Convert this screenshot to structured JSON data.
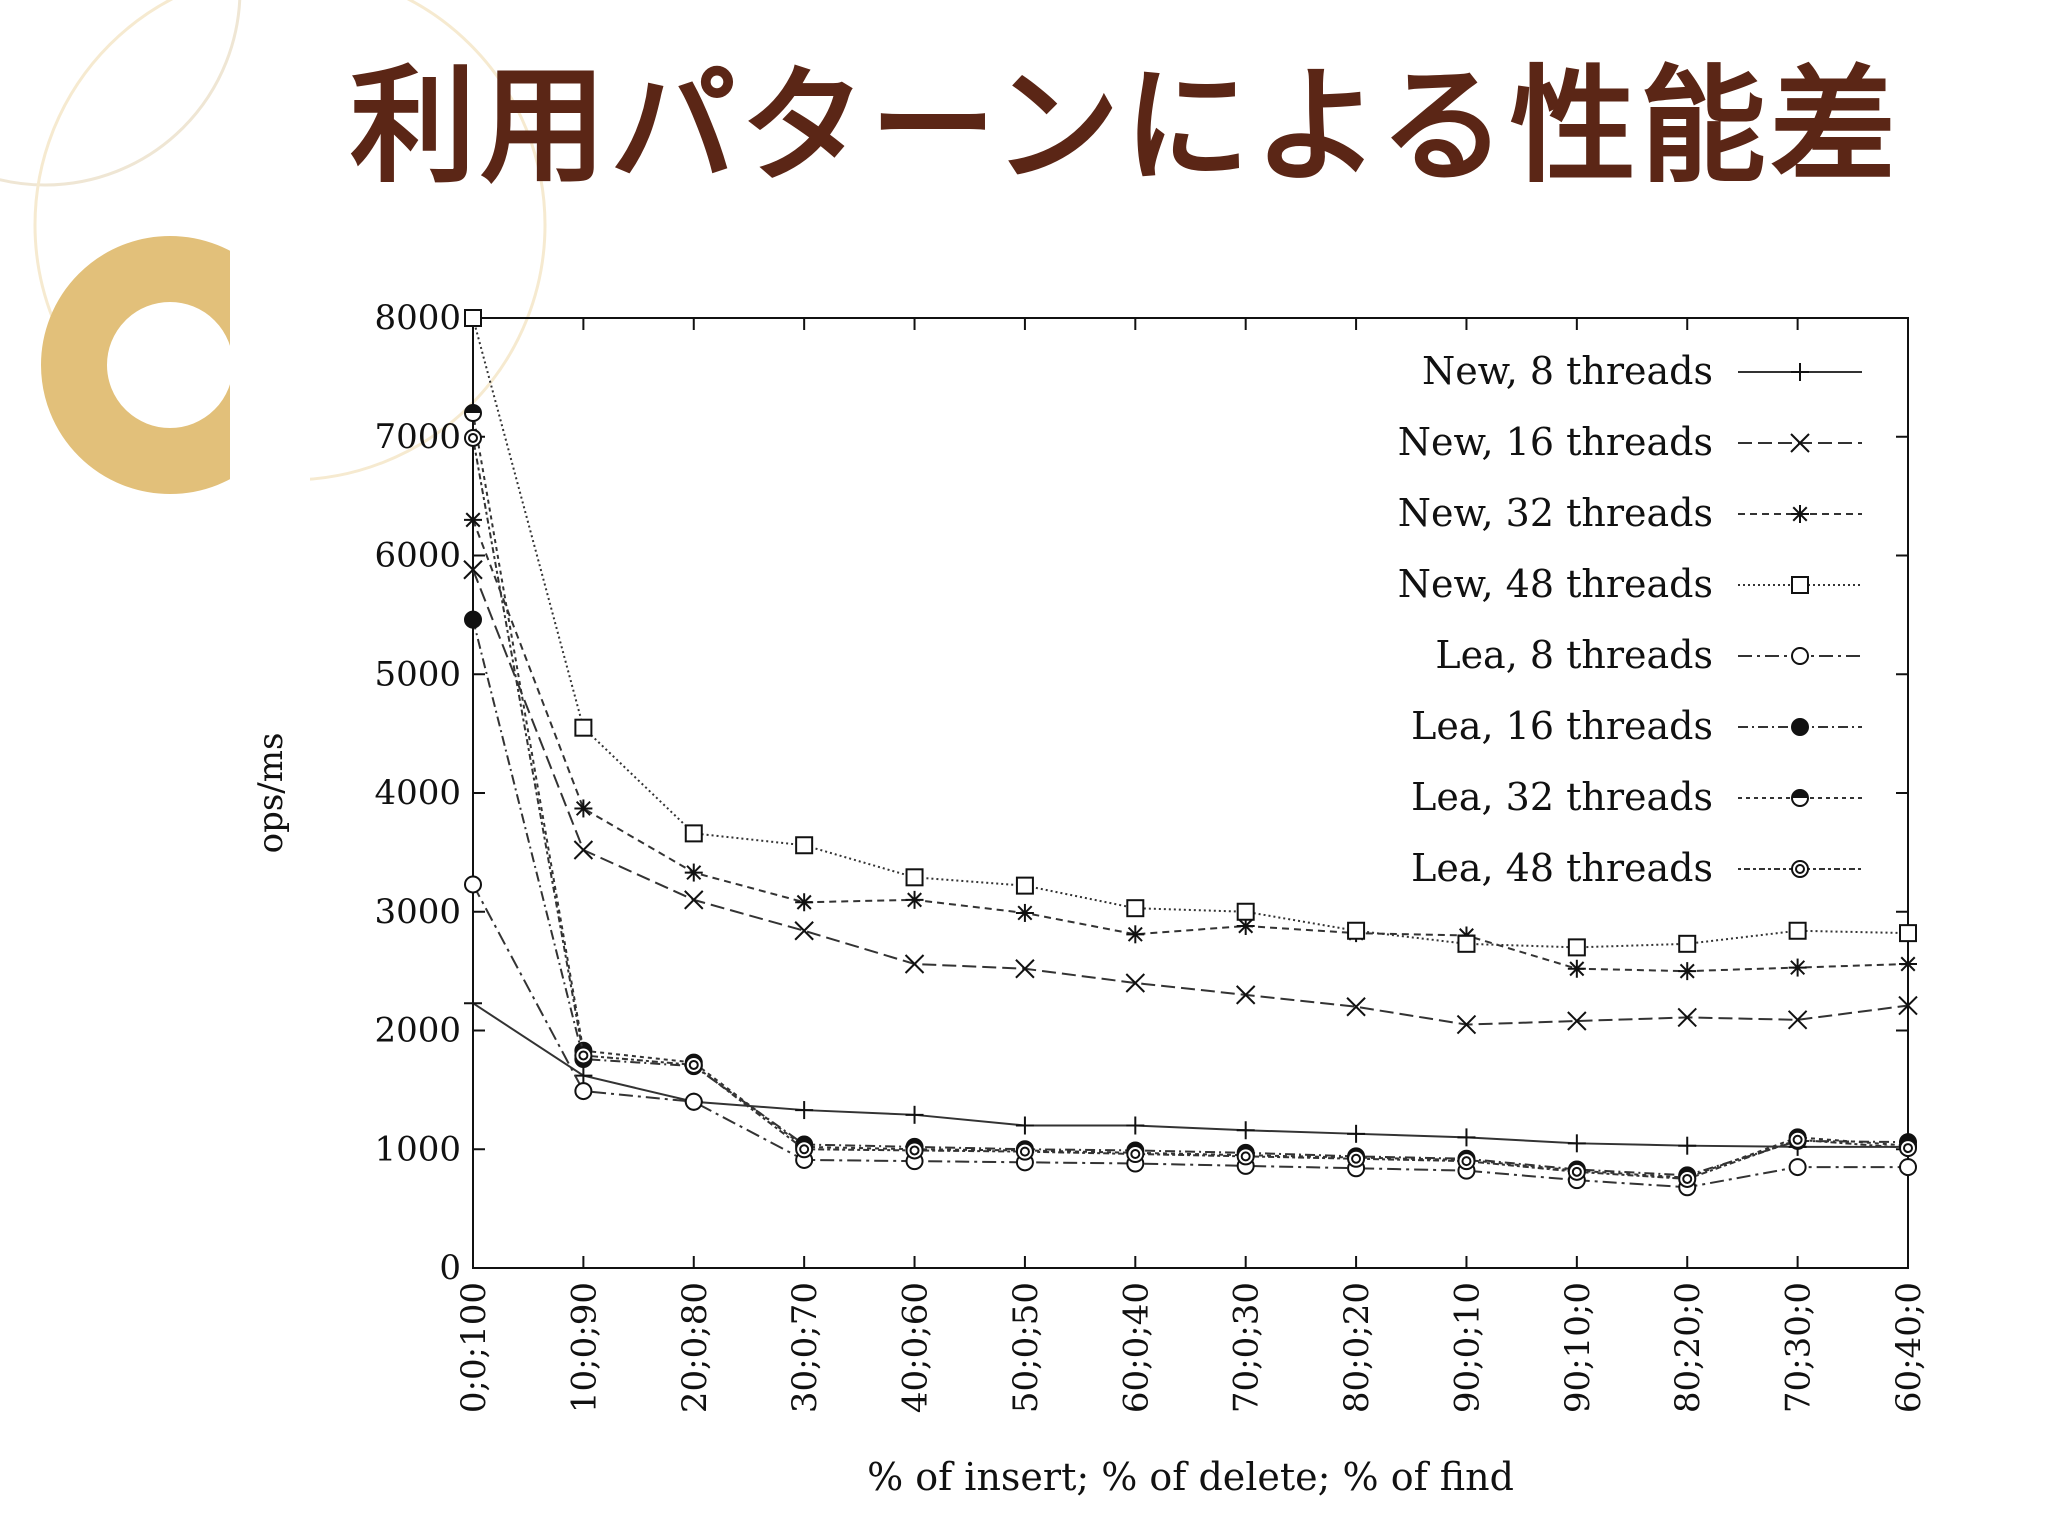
{
  "slide": {
    "title": "利用パターンによる性能差",
    "title_color": "#5b2616",
    "accent_color": "#e2c07a"
  },
  "chart_data": {
    "type": "line",
    "xlabel": "% of insert; % of delete; % of find",
    "ylabel": "ops/ms",
    "ylim": [
      0,
      8000
    ],
    "yticks": [
      0,
      1000,
      2000,
      3000,
      4000,
      5000,
      6000,
      7000,
      8000
    ],
    "categories": [
      "0;0;100",
      "10;0;90",
      "20;0;80",
      "30;0;70",
      "40;0;60",
      "50;0;50",
      "60;0;40",
      "70;0;30",
      "80;0;20",
      "90;0;10",
      "90;10;0",
      "80;20;0",
      "70;30;0",
      "60;40;0"
    ],
    "grid": false,
    "legend": "top-right",
    "series": [
      {
        "name": "New, 8 threads",
        "marker": "plus",
        "dash": "",
        "values": [
          2230,
          1620,
          1400,
          1330,
          1290,
          1200,
          1200,
          1160,
          1130,
          1100,
          1050,
          1030,
          1020,
          1020
        ]
      },
      {
        "name": "New, 16 threads",
        "marker": "x",
        "dash": "14 6",
        "values": [
          5880,
          3520,
          3100,
          2840,
          2560,
          2520,
          2400,
          2300,
          2200,
          2050,
          2080,
          2110,
          2090,
          2210
        ]
      },
      {
        "name": "New, 32 threads",
        "marker": "star",
        "dash": "7 5",
        "values": [
          6300,
          3870,
          3330,
          3080,
          3100,
          2990,
          2810,
          2880,
          2820,
          2800,
          2520,
          2500,
          2530,
          2560
        ]
      },
      {
        "name": "New, 48 threads",
        "marker": "square",
        "dash": "2 3",
        "values": [
          8000,
          4550,
          3660,
          3560,
          3290,
          3220,
          3030,
          3000,
          2840,
          2730,
          2700,
          2730,
          2840,
          2820
        ]
      },
      {
        "name": "Lea, 8 threads",
        "marker": "circle",
        "dash": "14 5 3 5",
        "values": [
          3230,
          1490,
          1400,
          910,
          900,
          890,
          880,
          860,
          840,
          820,
          740,
          680,
          850,
          850
        ]
      },
      {
        "name": "Lea, 16 threads",
        "marker": "dot",
        "dash": "10 4 2 4",
        "values": [
          5460,
          1760,
          1700,
          1040,
          1020,
          1000,
          990,
          970,
          940,
          920,
          830,
          780,
          1070,
          1060
        ]
      },
      {
        "name": "Lea, 32 threads",
        "marker": "half-circle",
        "dash": "4 4",
        "values": [
          7200,
          1830,
          1730,
          1020,
          1000,
          990,
          970,
          950,
          930,
          910,
          820,
          760,
          1100,
          1030
        ]
      },
      {
        "name": "Lea, 48 threads",
        "marker": "ring",
        "dash": "3 3 6 3",
        "values": [
          6990,
          1790,
          1710,
          1000,
          990,
          980,
          960,
          940,
          920,
          900,
          810,
          750,
          1080,
          1010
        ]
      }
    ]
  }
}
